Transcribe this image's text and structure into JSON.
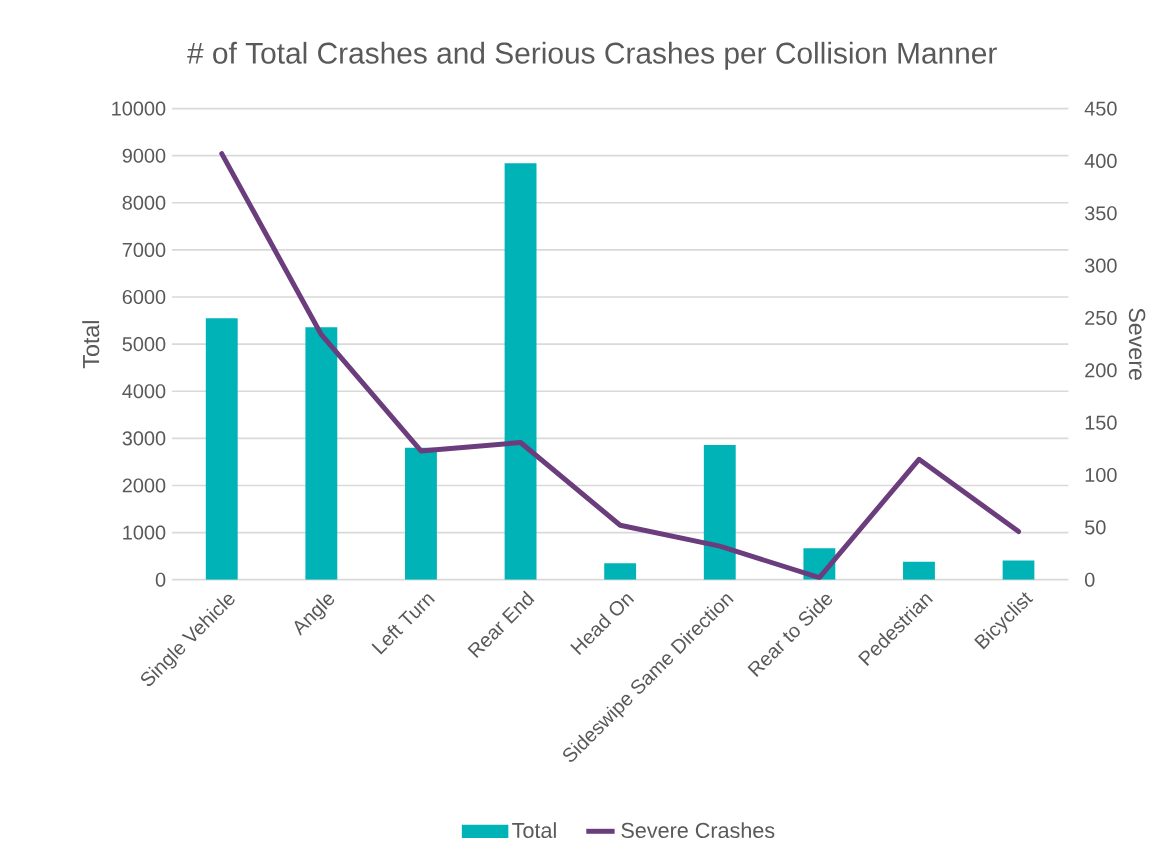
{
  "chart_data": {
    "type": "bar",
    "title": "# of Total Crashes and Serious Crashes per Collision Manner",
    "categories": [
      "Single Vehicle",
      "Angle",
      "Left Turn",
      "Rear End",
      "Head On",
      "Sideswipe Same Direction",
      "Rear to Side",
      "Pedestrian",
      "Bicyclist"
    ],
    "series": [
      {
        "name": "Total",
        "color": "#00b3b6",
        "values": [
          5550,
          5360,
          2800,
          8840,
          350,
          2860,
          670,
          380,
          410
        ]
      },
      {
        "name": "Severe Crashes",
        "type": "line",
        "axis": "y2",
        "color": "#6b3d7d",
        "values": [
          407,
          234,
          123,
          131,
          52,
          32,
          2,
          115,
          46
        ]
      }
    ],
    "ylabel": "Total",
    "y2label": "Severe",
    "ylim": [
      0,
      10000
    ],
    "yticks": [
      0,
      1000,
      2000,
      3000,
      4000,
      5000,
      6000,
      7000,
      8000,
      9000,
      10000
    ],
    "y2lim": [
      0,
      450
    ],
    "y2ticks": [
      0,
      50,
      100,
      150,
      200,
      250,
      300,
      350,
      400,
      450
    ],
    "grid": "y",
    "legend": "bottom"
  }
}
